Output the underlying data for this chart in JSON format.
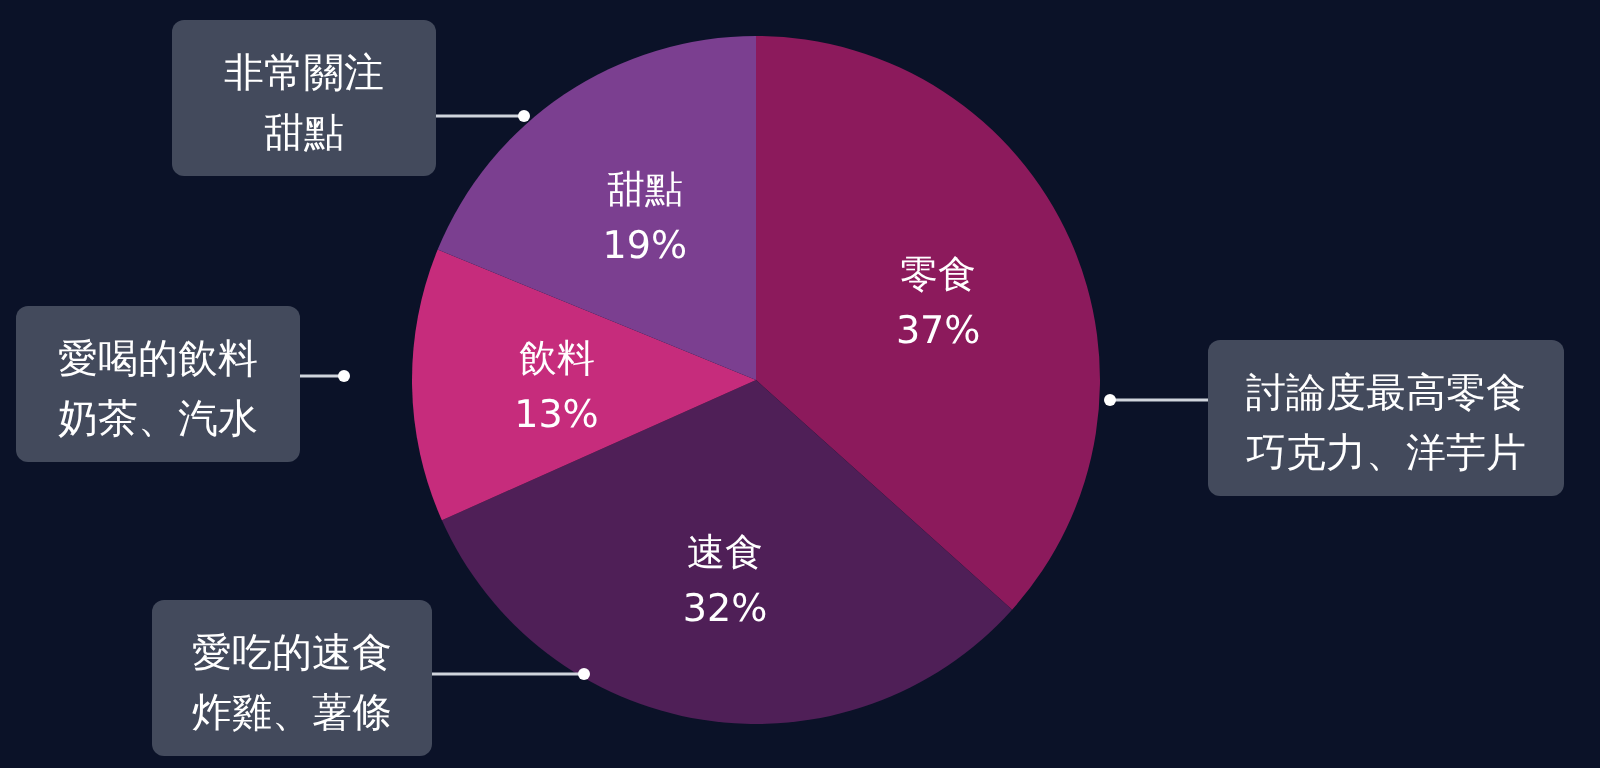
{
  "chart_data": {
    "type": "pie",
    "categories": [
      "零食",
      "速食",
      "飲料",
      "甜點"
    ],
    "values": [
      37,
      32,
      13,
      19
    ],
    "value_labels": [
      "37%",
      "32%",
      "13%",
      "19%"
    ],
    "colors": [
      "#8c1a5c",
      "#4f1f57",
      "#c62c7c",
      "#7b3f90"
    ],
    "annotations": [
      "討論度最高零食巧克力、洋芋片",
      "愛吃的速食炸雞、薯條",
      "愛喝的飲料奶茶、汽水",
      "非常關注甜點"
    ]
  }
}
